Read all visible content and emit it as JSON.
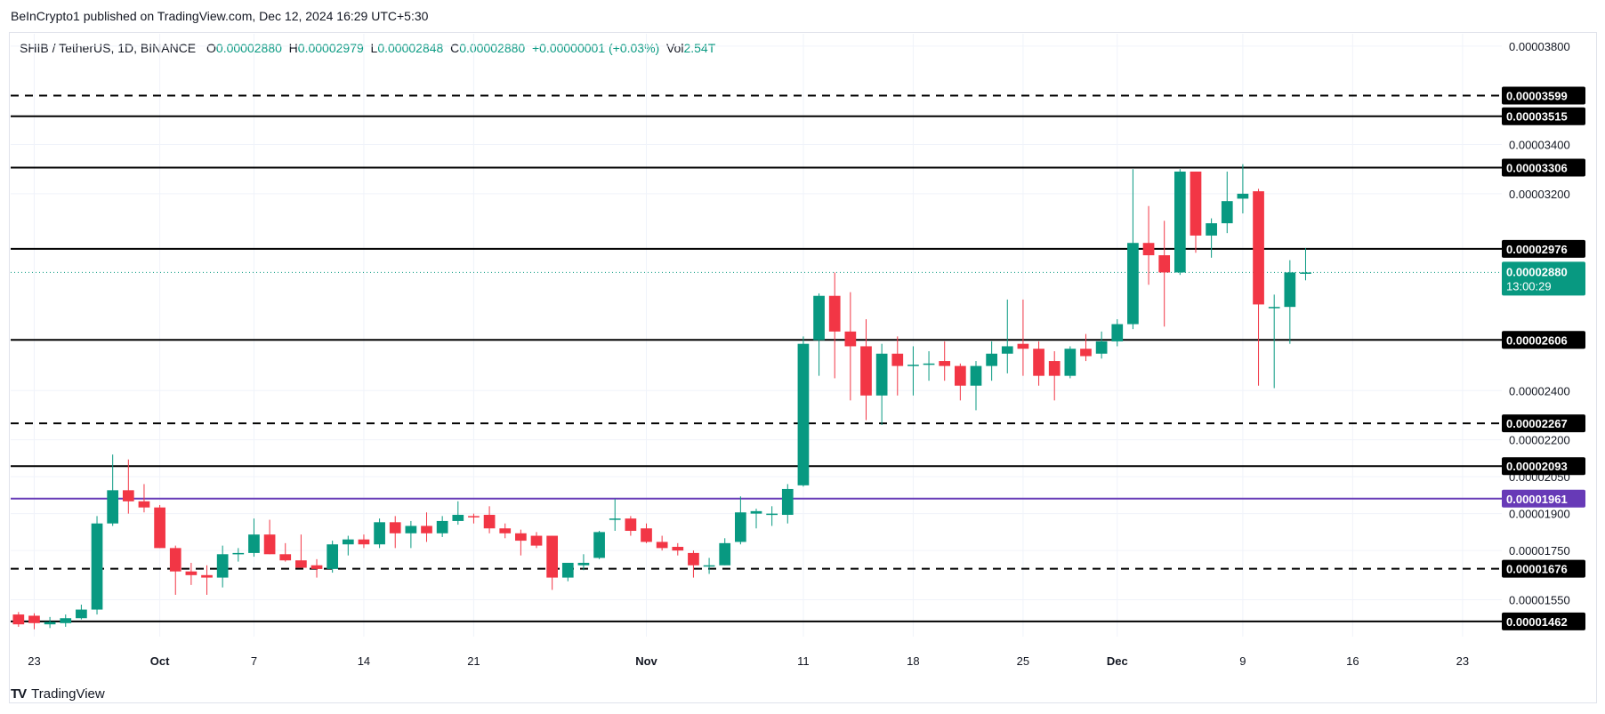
{
  "header": {
    "publish_text": "BeInCrypto1 published on TradingView.com, Dec 12, 2024 16:29 UTC+5:30"
  },
  "legend": {
    "symbol": "SHIB / TetherUS, 1D, BINANCE",
    "open_label": "O",
    "open": "0.00002880",
    "high_label": "H",
    "high": "0.00002979",
    "low_label": "L",
    "low": "0.00002848",
    "close_label": "C",
    "close": "0.00002880",
    "change": "+0.00000001 (+0.03%)",
    "vol_label": "Vol",
    "vol": "2.54T"
  },
  "footer": {
    "logo_mark": "TV",
    "logo_text": "TradingView"
  },
  "chart_data": {
    "type": "candlestick",
    "title": "SHIB / TetherUS, 1D, BINANCE",
    "ylim": [
      1.4e-05,
      3.85e-05
    ],
    "y_tick_labels": [
      "0.00003800",
      "0.00003400",
      "0.00003200",
      "0.00002400",
      "0.00002200",
      "0.00002050",
      "0.00001900",
      "0.00001750",
      "0.00001550"
    ],
    "x_tick_labels": [
      {
        "label": "23",
        "date": "2024-09-23"
      },
      {
        "label": "Oct",
        "date": "2024-10-01"
      },
      {
        "label": "7",
        "date": "2024-10-07"
      },
      {
        "label": "14",
        "date": "2024-10-14"
      },
      {
        "label": "21",
        "date": "2024-10-21"
      },
      {
        "label": "Nov",
        "date": "2024-11-01"
      },
      {
        "label": "11",
        "date": "2024-11-11"
      },
      {
        "label": "18",
        "date": "2024-11-18"
      },
      {
        "label": "25",
        "date": "2024-11-25"
      },
      {
        "label": "Dec",
        "date": "2024-12-01"
      },
      {
        "label": "9",
        "date": "2024-12-09"
      },
      {
        "label": "16",
        "date": "2024-12-16"
      },
      {
        "label": "23",
        "date": "2024-12-23"
      }
    ],
    "x_range": [
      "2024-09-22",
      "2024-12-26"
    ],
    "up_color": "#089981",
    "down_color": "#f23645",
    "levels": [
      {
        "value": 3.599e-05,
        "label": "0.00003599",
        "style": "dashed",
        "color": "#000000"
      },
      {
        "value": 3.515e-05,
        "label": "0.00003515",
        "style": "solid",
        "color": "#000000"
      },
      {
        "value": 3.306e-05,
        "label": "0.00003306",
        "style": "solid",
        "color": "#000000"
      },
      {
        "value": 2.976e-05,
        "label": "0.00002976",
        "style": "solid",
        "color": "#000000"
      },
      {
        "value": 2.606e-05,
        "label": "0.00002606",
        "style": "solid",
        "color": "#000000"
      },
      {
        "value": 2.267e-05,
        "label": "0.00002267",
        "style": "dashed",
        "color": "#000000"
      },
      {
        "value": 2.093e-05,
        "label": "0.00002093",
        "style": "solid",
        "color": "#000000"
      },
      {
        "value": 1.961e-05,
        "label": "0.00001961",
        "style": "solid",
        "color": "#673ab7"
      },
      {
        "value": 1.676e-05,
        "label": "0.00001676",
        "style": "dashed",
        "color": "#000000"
      },
      {
        "value": 1.462e-05,
        "label": "0.00001462",
        "style": "solid",
        "color": "#000000"
      }
    ],
    "last_price": {
      "value": 2.88e-05,
      "label": "0.00002880",
      "countdown": "13:00:29",
      "color": "#089981"
    },
    "candles": [
      {
        "d": "2024-09-22",
        "o": 1.49e-05,
        "h": 1.5e-05,
        "l": 1.44e-05,
        "c": 1.45e-05
      },
      {
        "d": "2024-09-23",
        "o": 1.485e-05,
        "h": 1.495e-05,
        "l": 1.43e-05,
        "c": 1.455e-05
      },
      {
        "d": "2024-09-24",
        "o": 1.45e-05,
        "h": 1.48e-05,
        "l": 1.435e-05,
        "c": 1.46e-05
      },
      {
        "d": "2024-09-25",
        "o": 1.455e-05,
        "h": 1.49e-05,
        "l": 1.44e-05,
        "c": 1.475e-05
      },
      {
        "d": "2024-09-26",
        "o": 1.475e-05,
        "h": 1.53e-05,
        "l": 1.47e-05,
        "c": 1.51e-05
      },
      {
        "d": "2024-09-27",
        "o": 1.51e-05,
        "h": 1.89e-05,
        "l": 1.49e-05,
        "c": 1.86e-05
      },
      {
        "d": "2024-09-28",
        "o": 1.86e-05,
        "h": 2.14e-05,
        "l": 1.85e-05,
        "c": 1.995e-05
      },
      {
        "d": "2024-09-29",
        "o": 1.995e-05,
        "h": 2.12e-05,
        "l": 1.9e-05,
        "c": 1.95e-05
      },
      {
        "d": "2024-09-30",
        "o": 1.95e-05,
        "h": 2.02e-05,
        "l": 1.905e-05,
        "c": 1.925e-05
      },
      {
        "d": "2024-10-01",
        "o": 1.925e-05,
        "h": 1.935e-05,
        "l": 1.76e-05,
        "c": 1.76e-05
      },
      {
        "d": "2024-10-02",
        "o": 1.76e-05,
        "h": 1.77e-05,
        "l": 1.57e-05,
        "c": 1.665e-05
      },
      {
        "d": "2024-10-03",
        "o": 1.665e-05,
        "h": 1.7e-05,
        "l": 1.61e-05,
        "c": 1.65e-05
      },
      {
        "d": "2024-10-04",
        "o": 1.65e-05,
        "h": 1.69e-05,
        "l": 1.57e-05,
        "c": 1.64e-05
      },
      {
        "d": "2024-10-05",
        "o": 1.64e-05,
        "h": 1.77e-05,
        "l": 1.6e-05,
        "c": 1.735e-05
      },
      {
        "d": "2024-10-06",
        "o": 1.735e-05,
        "h": 1.76e-05,
        "l": 1.705e-05,
        "c": 1.74e-05
      },
      {
        "d": "2024-10-07",
        "o": 1.74e-05,
        "h": 1.88e-05,
        "l": 1.725e-05,
        "c": 1.815e-05
      },
      {
        "d": "2024-10-08",
        "o": 1.815e-05,
        "h": 1.875e-05,
        "l": 1.735e-05,
        "c": 1.735e-05
      },
      {
        "d": "2024-10-09",
        "o": 1.735e-05,
        "h": 1.78e-05,
        "l": 1.705e-05,
        "c": 1.71e-05
      },
      {
        "d": "2024-10-10",
        "o": 1.71e-05,
        "h": 1.815e-05,
        "l": 1.68e-05,
        "c": 1.68e-05
      },
      {
        "d": "2024-10-11",
        "o": 1.69e-05,
        "h": 1.715e-05,
        "l": 1.64e-05,
        "c": 1.675e-05
      },
      {
        "d": "2024-10-12",
        "o": 1.675e-05,
        "h": 1.79e-05,
        "l": 1.66e-05,
        "c": 1.775e-05
      },
      {
        "d": "2024-10-13",
        "o": 1.775e-05,
        "h": 1.81e-05,
        "l": 1.73e-05,
        "c": 1.795e-05
      },
      {
        "d": "2024-10-14",
        "o": 1.795e-05,
        "h": 1.815e-05,
        "l": 1.76e-05,
        "c": 1.775e-05
      },
      {
        "d": "2024-10-15",
        "o": 1.775e-05,
        "h": 1.88e-05,
        "l": 1.76e-05,
        "c": 1.865e-05
      },
      {
        "d": "2024-10-16",
        "o": 1.865e-05,
        "h": 1.89e-05,
        "l": 1.76e-05,
        "c": 1.82e-05
      },
      {
        "d": "2024-10-17",
        "o": 1.82e-05,
        "h": 1.87e-05,
        "l": 1.76e-05,
        "c": 1.85e-05
      },
      {
        "d": "2024-10-18",
        "o": 1.85e-05,
        "h": 1.905e-05,
        "l": 1.785e-05,
        "c": 1.82e-05
      },
      {
        "d": "2024-10-19",
        "o": 1.82e-05,
        "h": 1.89e-05,
        "l": 1.805e-05,
        "c": 1.87e-05
      },
      {
        "d": "2024-10-20",
        "o": 1.87e-05,
        "h": 1.95e-05,
        "l": 1.855e-05,
        "c": 1.895e-05
      },
      {
        "d": "2024-10-21",
        "o": 1.89e-05,
        "h": 1.9e-05,
        "l": 1.86e-05,
        "c": 1.885e-05
      },
      {
        "d": "2024-10-22",
        "o": 1.895e-05,
        "h": 1.93e-05,
        "l": 1.82e-05,
        "c": 1.84e-05
      },
      {
        "d": "2024-10-23",
        "o": 1.84e-05,
        "h": 1.86e-05,
        "l": 1.8e-05,
        "c": 1.82e-05
      },
      {
        "d": "2024-10-24",
        "o": 1.82e-05,
        "h": 1.835e-05,
        "l": 1.73e-05,
        "c": 1.79e-05
      },
      {
        "d": "2024-10-25",
        "o": 1.81e-05,
        "h": 1.825e-05,
        "l": 1.76e-05,
        "c": 1.77e-05
      },
      {
        "d": "2024-10-26",
        "o": 1.81e-05,
        "h": 1.81e-05,
        "l": 1.59e-05,
        "c": 1.64e-05
      },
      {
        "d": "2024-10-27",
        "o": 1.64e-05,
        "h": 1.7e-05,
        "l": 1.625e-05,
        "c": 1.7e-05
      },
      {
        "d": "2024-10-28",
        "o": 1.69e-05,
        "h": 1.735e-05,
        "l": 1.67e-05,
        "c": 1.7e-05
      },
      {
        "d": "2024-10-29",
        "o": 1.72e-05,
        "h": 1.83e-05,
        "l": 1.715e-05,
        "c": 1.825e-05
      },
      {
        "d": "2024-10-30",
        "o": 1.88e-05,
        "h": 1.96e-05,
        "l": 1.83e-05,
        "c": 1.88e-05
      },
      {
        "d": "2024-10-31",
        "o": 1.88e-05,
        "h": 1.89e-05,
        "l": 1.81e-05,
        "c": 1.83e-05
      },
      {
        "d": "2024-11-01",
        "o": 1.84e-05,
        "h": 1.86e-05,
        "l": 1.78e-05,
        "c": 1.785e-05
      },
      {
        "d": "2024-11-02",
        "o": 1.785e-05,
        "h": 1.81e-05,
        "l": 1.75e-05,
        "c": 1.76e-05
      },
      {
        "d": "2024-11-03",
        "o": 1.765e-05,
        "h": 1.78e-05,
        "l": 1.73e-05,
        "c": 1.75e-05
      },
      {
        "d": "2024-11-04",
        "o": 1.74e-05,
        "h": 1.75e-05,
        "l": 1.64e-05,
        "c": 1.69e-05
      },
      {
        "d": "2024-11-05",
        "o": 1.69e-05,
        "h": 1.72e-05,
        "l": 1.655e-05,
        "c": 1.69e-05
      },
      {
        "d": "2024-11-06",
        "o": 1.69e-05,
        "h": 1.8e-05,
        "l": 1.69e-05,
        "c": 1.78e-05
      },
      {
        "d": "2024-11-07",
        "o": 1.785e-05,
        "h": 1.97e-05,
        "l": 1.775e-05,
        "c": 1.905e-05
      },
      {
        "d": "2024-11-08",
        "o": 1.9e-05,
        "h": 1.92e-05,
        "l": 1.84e-05,
        "c": 1.91e-05
      },
      {
        "d": "2024-11-09",
        "o": 1.9e-05,
        "h": 1.93e-05,
        "l": 1.85e-05,
        "c": 1.9e-05
      },
      {
        "d": "2024-11-10",
        "o": 1.895e-05,
        "h": 2.02e-05,
        "l": 1.86e-05,
        "c": 2e-05
      },
      {
        "d": "2024-11-11",
        "o": 2.015e-05,
        "h": 2.62e-05,
        "l": 2.01e-05,
        "c": 2.59e-05
      },
      {
        "d": "2024-11-12",
        "o": 2.605e-05,
        "h": 2.795e-05,
        "l": 2.46e-05,
        "c": 2.785e-05
      },
      {
        "d": "2024-11-13",
        "o": 2.785e-05,
        "h": 2.88e-05,
        "l": 2.45e-05,
        "c": 2.64e-05
      },
      {
        "d": "2024-11-14",
        "o": 2.64e-05,
        "h": 2.8e-05,
        "l": 2.36e-05,
        "c": 2.58e-05
      },
      {
        "d": "2024-11-15",
        "o": 2.58e-05,
        "h": 2.69e-05,
        "l": 2.28e-05,
        "c": 2.38e-05
      },
      {
        "d": "2024-11-16",
        "o": 2.38e-05,
        "h": 2.59e-05,
        "l": 2.26e-05,
        "c": 2.55e-05
      },
      {
        "d": "2024-11-17",
        "o": 2.55e-05,
        "h": 2.62e-05,
        "l": 2.38e-05,
        "c": 2.5e-05
      },
      {
        "d": "2024-11-18",
        "o": 2.5e-05,
        "h": 2.58e-05,
        "l": 2.38e-05,
        "c": 2.505e-05
      },
      {
        "d": "2024-11-19",
        "o": 2.505e-05,
        "h": 2.56e-05,
        "l": 2.44e-05,
        "c": 2.51e-05
      },
      {
        "d": "2024-11-20",
        "o": 2.52e-05,
        "h": 2.6e-05,
        "l": 2.44e-05,
        "c": 2.5e-05
      },
      {
        "d": "2024-11-21",
        "o": 2.5e-05,
        "h": 2.51e-05,
        "l": 2.36e-05,
        "c": 2.42e-05
      },
      {
        "d": "2024-11-22",
        "o": 2.42e-05,
        "h": 2.52e-05,
        "l": 2.32e-05,
        "c": 2.5e-05
      },
      {
        "d": "2024-11-23",
        "o": 2.5e-05,
        "h": 2.6e-05,
        "l": 2.44e-05,
        "c": 2.55e-05
      },
      {
        "d": "2024-11-24",
        "o": 2.55e-05,
        "h": 2.77e-05,
        "l": 2.47e-05,
        "c": 2.58e-05
      },
      {
        "d": "2024-11-25",
        "o": 2.59e-05,
        "h": 2.77e-05,
        "l": 2.46e-05,
        "c": 2.57e-05
      },
      {
        "d": "2024-11-26",
        "o": 2.57e-05,
        "h": 2.6e-05,
        "l": 2.42e-05,
        "c": 2.46e-05
      },
      {
        "d": "2024-11-27",
        "o": 2.52e-05,
        "h": 2.56e-05,
        "l": 2.36e-05,
        "c": 2.46e-05
      },
      {
        "d": "2024-11-28",
        "o": 2.46e-05,
        "h": 2.58e-05,
        "l": 2.45e-05,
        "c": 2.57e-05
      },
      {
        "d": "2024-11-29",
        "o": 2.57e-05,
        "h": 2.63e-05,
        "l": 2.52e-05,
        "c": 2.54e-05
      },
      {
        "d": "2024-11-30",
        "o": 2.55e-05,
        "h": 2.64e-05,
        "l": 2.53e-05,
        "c": 2.6e-05
      },
      {
        "d": "2024-12-01",
        "o": 2.6e-05,
        "h": 2.69e-05,
        "l": 2.58e-05,
        "c": 2.67e-05
      },
      {
        "d": "2024-12-02",
        "o": 2.67e-05,
        "h": 3.3e-05,
        "l": 2.65e-05,
        "c": 3e-05
      },
      {
        "d": "2024-12-03",
        "o": 3e-05,
        "h": 3.15e-05,
        "l": 2.83e-05,
        "c": 2.95e-05
      },
      {
        "d": "2024-12-04",
        "o": 2.95e-05,
        "h": 3.09e-05,
        "l": 2.66e-05,
        "c": 2.88e-05
      },
      {
        "d": "2024-12-05",
        "o": 2.88e-05,
        "h": 3.3e-05,
        "l": 2.87e-05,
        "c": 3.29e-05
      },
      {
        "d": "2024-12-06",
        "o": 3.29e-05,
        "h": 3.29e-05,
        "l": 2.96e-05,
        "c": 3.03e-05
      },
      {
        "d": "2024-12-07",
        "o": 3.03e-05,
        "h": 3.1e-05,
        "l": 2.94e-05,
        "c": 3.08e-05
      },
      {
        "d": "2024-12-08",
        "o": 3.08e-05,
        "h": 3.29e-05,
        "l": 3.04e-05,
        "c": 3.17e-05
      },
      {
        "d": "2024-12-09",
        "o": 3.18e-05,
        "h": 3.32e-05,
        "l": 3.12e-05,
        "c": 3.2e-05
      },
      {
        "d": "2024-12-10",
        "o": 3.21e-05,
        "h": 3.22e-05,
        "l": 2.42e-05,
        "c": 2.75e-05
      },
      {
        "d": "2024-12-11",
        "o": 2.74e-05,
        "h": 2.79e-05,
        "l": 2.41e-05,
        "c": 2.74e-05
      },
      {
        "d": "2024-12-12",
        "o": 2.74e-05,
        "h": 2.93e-05,
        "l": 2.59e-05,
        "c": 2.88e-05
      },
      {
        "d": "2024-12-13",
        "o": 2.88e-05,
        "h": 2.979e-05,
        "l": 2.848e-05,
        "c": 2.88e-05
      }
    ]
  }
}
